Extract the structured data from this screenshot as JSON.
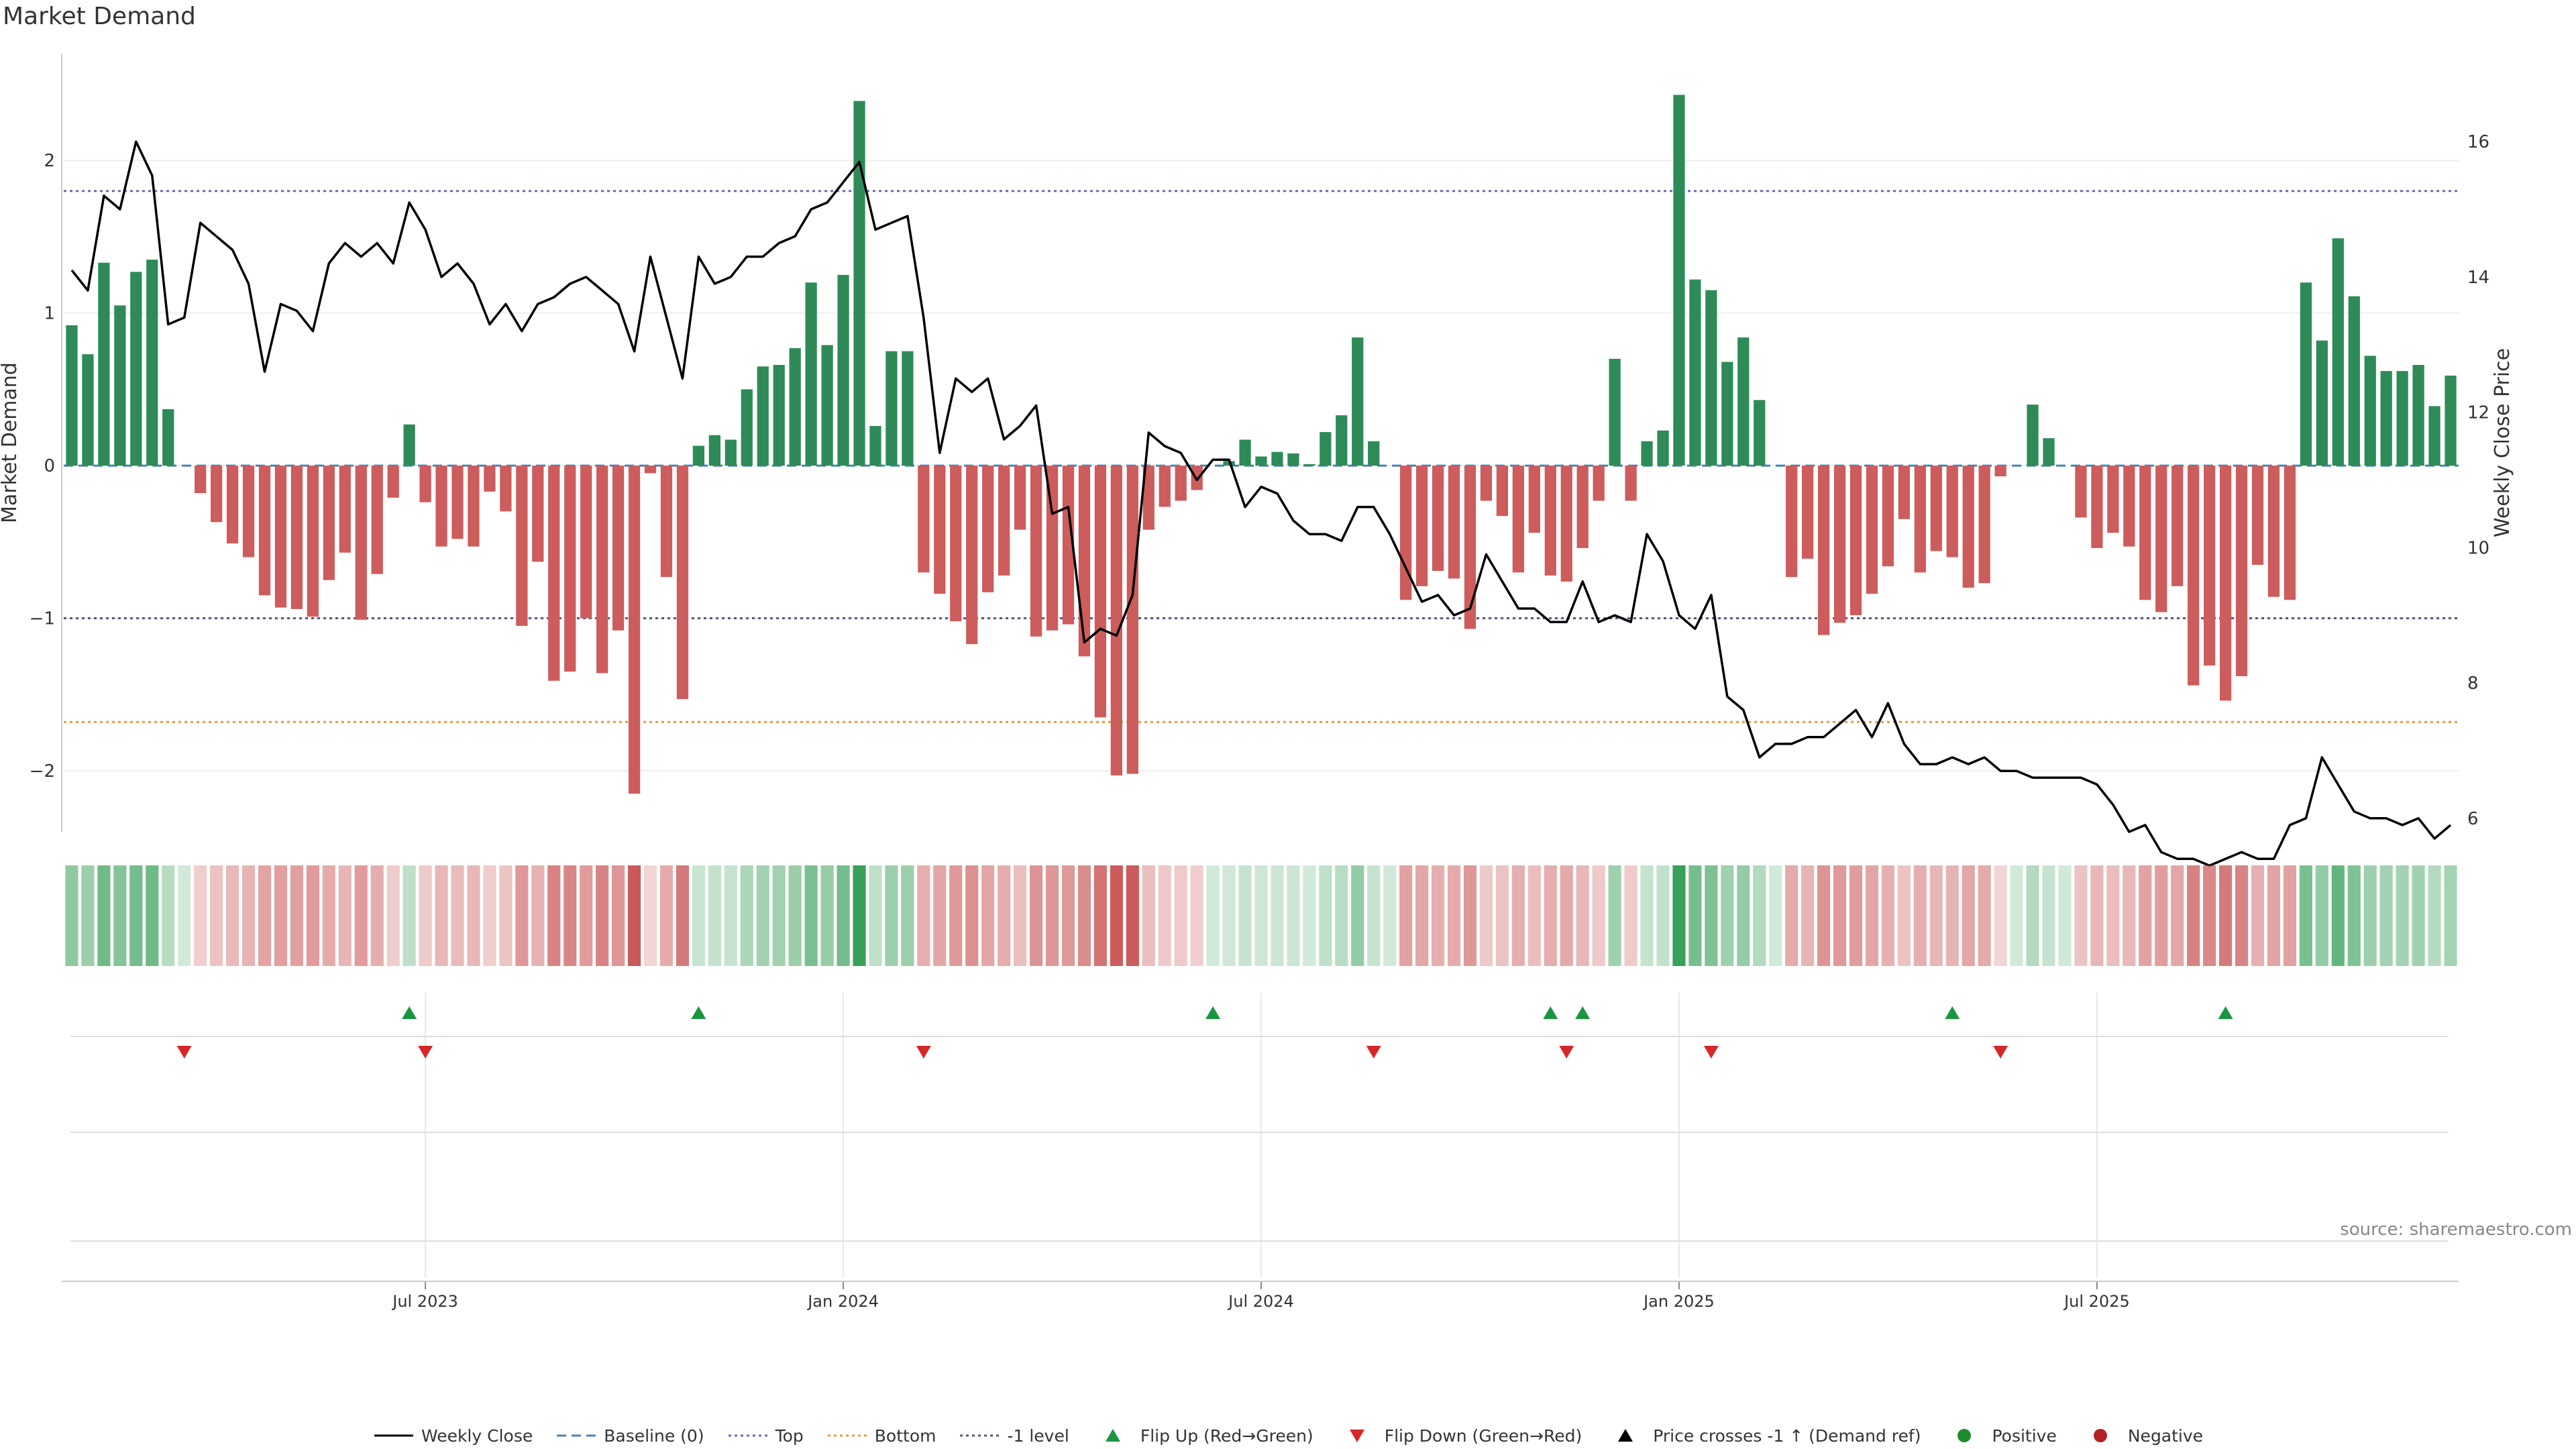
{
  "title": "Market Demand",
  "source": "source: sharemaestro.com",
  "colors": {
    "positive": "#2e8b57",
    "negative": "#cd5c5c",
    "price": "#000000",
    "baseline": "#4682b4",
    "top": "#6a6ab0",
    "bottom": "#e69a3a",
    "minus1": "#555577",
    "flip_up": "#1a9641",
    "flip_down": "#d62728"
  },
  "chart_data": {
    "type": "bar",
    "title": "Market Demand",
    "xlabel": "",
    "ylabel": "Market Demand",
    "y2label": "Weekly Close Price",
    "ylim": [
      -2.4,
      2.7
    ],
    "y2lim": [
      5.8,
      17.3
    ],
    "yticks": [
      2,
      1,
      0,
      -1,
      -2
    ],
    "ytick_labels": [
      "2",
      "1",
      "0",
      "−1",
      "−2"
    ],
    "y2ticks": [
      16,
      14,
      12,
      10,
      8,
      6
    ],
    "y2tick_labels": [
      "16",
      "14",
      "12",
      "10",
      "8",
      "6"
    ],
    "xticks": [
      22,
      48,
      74,
      100,
      126
    ],
    "xtick_labels": [
      "Jul 2023",
      "Jan 2024",
      "Jul 2024",
      "Jan 2025",
      "Jul 2025"
    ],
    "top_level": 1.8,
    "bottom_level": -1.68,
    "minus1_level": -1.0,
    "demand": [
      0.92,
      0.73,
      1.33,
      1.05,
      1.27,
      1.35,
      0.37,
      0,
      -0.18,
      -0.37,
      -0.51,
      -0.6,
      -0.85,
      -0.93,
      -0.94,
      -0.99,
      -0.75,
      -0.57,
      -1.01,
      -0.71,
      -0.21,
      0.27,
      -0.24,
      -0.53,
      -0.48,
      -0.53,
      -0.17,
      -0.3,
      -1.05,
      -0.63,
      -1.41,
      -1.35,
      -1.0,
      -1.36,
      -1.08,
      -2.15,
      -0.05,
      -0.73,
      -1.53,
      0.13,
      0.2,
      0.17,
      0.5,
      0.65,
      0.66,
      0.77,
      1.2,
      0.79,
      1.25,
      2.39,
      0.26,
      0.75,
      0.75,
      -0.7,
      -0.84,
      -1.02,
      -1.17,
      -0.83,
      -0.72,
      -0.42,
      -1.12,
      -1.08,
      -1.04,
      -1.25,
      -1.65,
      -2.03,
      -2.02,
      -0.42,
      -0.27,
      -0.23,
      -0.16,
      0,
      0.03,
      0.17,
      0.06,
      0.09,
      0.08,
      0.01,
      0.22,
      0.33,
      0.84,
      0.16,
      0,
      -0.88,
      -0.79,
      -0.69,
      -0.74,
      -1.07,
      -0.23,
      -0.33,
      -0.7,
      -0.44,
      -0.72,
      -0.76,
      -0.54,
      -0.23,
      0.7,
      -0.23,
      0.16,
      0.23,
      2.43,
      1.22,
      1.15,
      0.68,
      0.84,
      0.43,
      0,
      -0.73,
      -0.61,
      -1.11,
      -1.03,
      -0.98,
      -0.84,
      -0.66,
      -0.35,
      -0.7,
      -0.56,
      -0.6,
      -0.8,
      -0.77,
      -0.07,
      0,
      0.4,
      0.18,
      0,
      -0.34,
      -0.54,
      -0.44,
      -0.53,
      -0.88,
      -0.96,
      -0.79,
      -1.44,
      -1.31,
      -1.54,
      -1.38,
      -0.65,
      -0.86,
      -0.88,
      1.2,
      0.82,
      1.49,
      1.11,
      0.72,
      0.62,
      0.62,
      0.66,
      0.39,
      0.59
    ],
    "price": [
      14.1,
      13.8,
      15.2,
      15.0,
      16.0,
      15.5,
      13.3,
      13.4,
      14.8,
      14.6,
      14.4,
      13.9,
      12.6,
      13.6,
      13.5,
      13.2,
      14.2,
      14.5,
      14.3,
      14.5,
      14.2,
      15.1,
      14.7,
      14.0,
      14.2,
      13.9,
      13.3,
      13.6,
      13.2,
      13.6,
      13.7,
      13.9,
      14.0,
      13.8,
      13.6,
      12.9,
      14.3,
      13.4,
      12.5,
      14.3,
      13.9,
      14.0,
      14.3,
      14.3,
      14.5,
      14.6,
      15.0,
      15.1,
      15.4,
      15.7,
      14.7,
      14.8,
      14.9,
      13.4,
      11.4,
      12.5,
      12.3,
      12.5,
      11.6,
      11.8,
      12.1,
      10.5,
      10.6,
      8.6,
      8.8,
      8.7,
      9.3,
      11.7,
      11.5,
      11.4,
      11.0,
      11.3,
      11.3,
      10.6,
      10.9,
      10.8,
      10.4,
      10.2,
      10.2,
      10.1,
      10.6,
      10.6,
      10.2,
      9.7,
      9.2,
      9.3,
      9.0,
      9.1,
      9.9,
      9.5,
      9.1,
      9.1,
      8.9,
      8.9,
      9.5,
      8.9,
      9.0,
      8.9,
      10.2,
      9.8,
      9.0,
      8.8,
      9.3,
      7.8,
      7.6,
      6.9,
      7.1,
      7.1,
      7.2,
      7.2,
      7.4,
      7.6,
      7.2,
      7.7,
      7.1,
      6.8,
      6.8,
      6.9,
      6.8,
      6.9,
      6.7,
      6.7,
      6.6,
      6.6,
      6.6,
      6.6,
      6.5,
      6.2,
      5.8,
      5.9,
      5.5,
      5.4,
      5.4,
      5.3,
      5.4,
      5.5,
      5.4,
      5.4,
      5.9,
      6.0,
      6.9,
      6.5,
      6.1,
      6.0,
      6.0,
      5.9,
      6.0,
      5.7,
      5.9
    ],
    "flip_up": [
      21,
      39,
      71,
      92,
      94,
      117,
      134
    ],
    "flip_down": [
      7,
      22,
      53,
      81,
      93,
      102,
      120
    ]
  },
  "legend": [
    {
      "label": "Weekly Close",
      "symbol": "line",
      "color": "#000000"
    },
    {
      "label": "Baseline (0)",
      "symbol": "dash",
      "color": "#4682b4"
    },
    {
      "label": "Top",
      "symbol": "dot",
      "color": "#6a6ab0"
    },
    {
      "label": "Bottom",
      "symbol": "dot",
      "color": "#e69a3a"
    },
    {
      "label": "-1 level",
      "symbol": "dot",
      "color": "#555577"
    },
    {
      "label": "Flip Up (Red→Green)",
      "symbol": "tri-up",
      "color": "#1a9641"
    },
    {
      "label": "Flip Down (Green→Red)",
      "symbol": "tri-down",
      "color": "#d62728"
    },
    {
      "label": "Price crosses -1 ↑ (Demand ref)",
      "symbol": "tri-up",
      "color": "#000000"
    },
    {
      "label": "Positive",
      "symbol": "circle",
      "color": "#1f8a2e"
    },
    {
      "label": "Negative",
      "symbol": "circle",
      "color": "#b22222"
    }
  ]
}
